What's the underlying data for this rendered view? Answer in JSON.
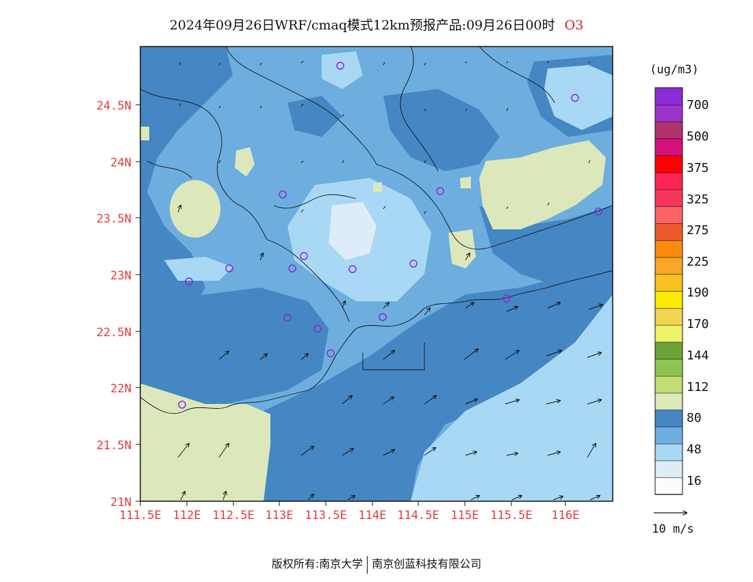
{
  "title": {
    "main": "2024年09月26日WRF/cmaq模式12km预报产品:09月26日00时",
    "species": "O3"
  },
  "map": {
    "lat_labels": [
      "24.5N",
      "24N",
      "23.5N",
      "23N",
      "22.5N",
      "22N",
      "21.5N",
      "21N"
    ],
    "lon_labels": [
      "111.5E",
      "112E",
      "112.5E",
      "113E",
      "113.5E",
      "114E",
      "114.5E",
      "115E",
      "115.5E",
      "116E"
    ],
    "lon_range": [
      111.5,
      116.6
    ],
    "lat_range": [
      21.0,
      25.0
    ]
  },
  "legend": {
    "unit": "(ug/m3)",
    "levels": [
      "700",
      "500",
      "375",
      "325",
      "275",
      "225",
      "190",
      "170",
      "144",
      "112",
      "80",
      "48",
      "16"
    ],
    "colors": [
      "#fcfcfc",
      "#dcedf8",
      "#a8d8f4",
      "#6daede",
      "#4587c3",
      "#dce8bc",
      "#c1de74",
      "#8cc552",
      "#6aa439",
      "#eef26a",
      "#f2d453",
      "#fbea05",
      "#f7c11f",
      "#f7a627",
      "#f98a0d",
      "#ec5a2b",
      "#fb6464",
      "#f6365a",
      "#fc2453",
      "#ff0000",
      "#d51179",
      "#b0336d",
      "#9b34c8",
      "#8b2bd6"
    ]
  },
  "wind_vector": {
    "label": "10 m/s"
  },
  "footer": {
    "left": "版权所有:南京大学",
    "right": "南京创蓝科技有限公司"
  }
}
